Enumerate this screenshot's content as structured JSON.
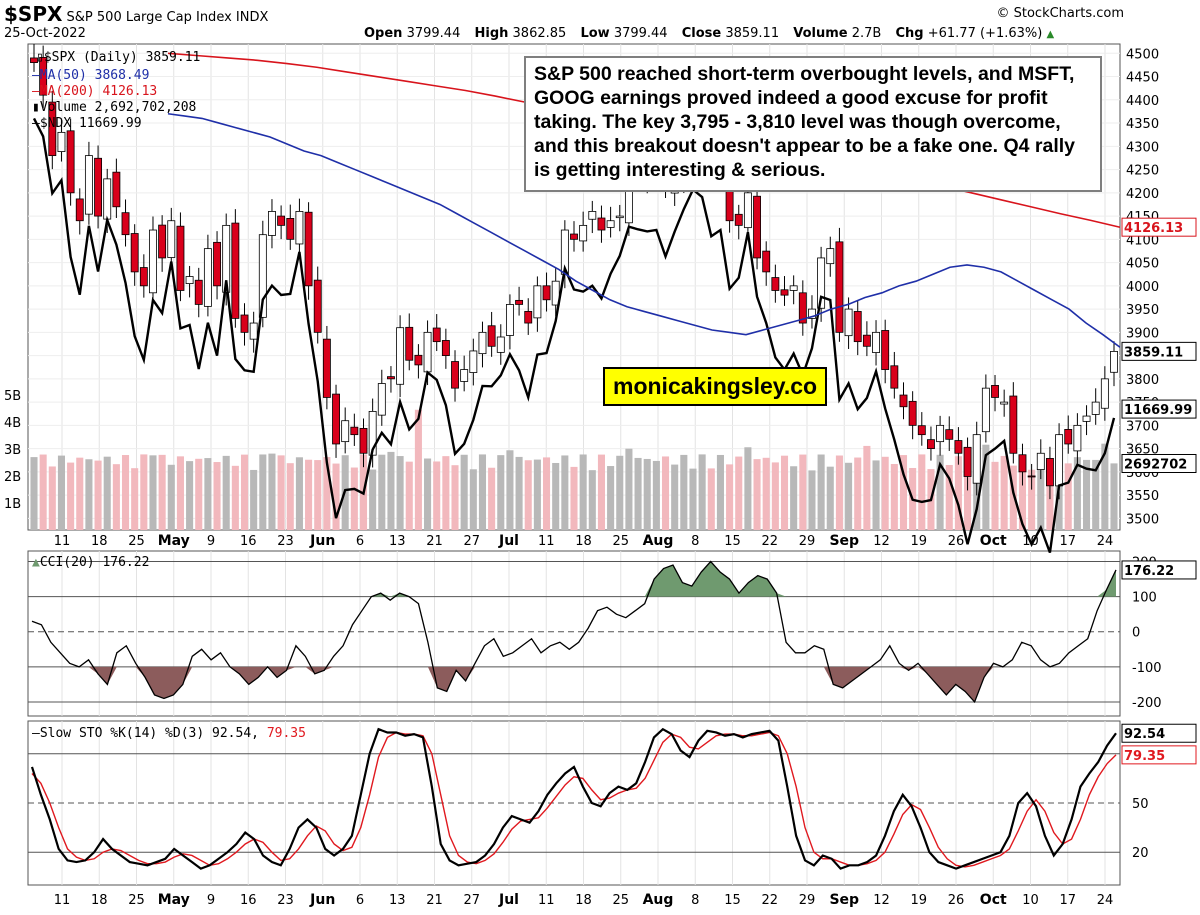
{
  "header": {
    "symbol": "$SPX",
    "name": "S&P 500 Large Cap Index",
    "exchange": "INDX",
    "date": "25-Oct-2022",
    "source": "© StockCharts.com",
    "ohlc": {
      "open_label": "Open",
      "open": "3799.44",
      "high_label": "High",
      "high": "3862.85",
      "low_label": "Low",
      "low": "3799.44",
      "close_label": "Close",
      "close": "3859.11",
      "volume_label": "Volume",
      "volume": "2.7B",
      "chg_label": "Chg",
      "chg": "+61.77 (+1.63%)"
    }
  },
  "legend": {
    "spx": "$SPX (Daily) 3859.11",
    "ma50": "MA(50) 3868.49",
    "ma200": "MA(200) 4126.13",
    "volume": "Volume 2,692,702,208",
    "ndx": "$NDX 11669.99"
  },
  "annotation": "S&P 500 reached short-term overbought levels, and MSFT, GOOG earnings proved indeed a good excuse for profit taking. The key 3,795 - 3,810 level was though overcome, and this breakout doesn't appear to be a fake one. Q4 rally is getting interesting & serious.",
  "watermark": "monicakingsley.co",
  "colors": {
    "up_candle": "#ffffff",
    "down_candle": "#d9001b",
    "ma50": "#1f2fa8",
    "ma200": "#d8141c",
    "volume_up": "#b8b8b8",
    "volume_down": "#f2b8bd",
    "cci_pos_fill": "#6f9a6f",
    "cci_neg_fill": "#8c5c5c",
    "sto_k": "#000000",
    "sto_d": "#e0191f"
  },
  "chart_data": [
    {
      "type": "candlestick",
      "title": "$SPX S&P 500 Large Cap Index INDX",
      "x_tick_labels": [
        "11",
        "18",
        "25",
        "May",
        "9",
        "16",
        "23",
        "Jun",
        "6",
        "13",
        "21",
        "27",
        "Jul",
        "11",
        "18",
        "25",
        "Aug",
        "8",
        "15",
        "22",
        "29",
        "Sep",
        "12",
        "19",
        "26",
        "Oct",
        "10",
        "17",
        "24"
      ],
      "y_ticks": [
        3500,
        3550,
        3600,
        3650,
        3700,
        3750,
        3800,
        3850,
        3900,
        3950,
        4000,
        4050,
        4100,
        4150,
        4200,
        4250,
        4300,
        4350,
        4400,
        4450,
        4500
      ],
      "ylim": [
        3475,
        4520
      ],
      "volume_ticks": [
        "1B",
        "2B",
        "3B",
        "4B",
        "5B"
      ],
      "last_value_labels": {
        "ma200": "4126.13",
        "close": "3859.11",
        "ndx": "11669.99",
        "volume": "2692702"
      },
      "series": [
        {
          "name": "$SPX (Daily)",
          "close": [
            4480,
            4410,
            4280,
            4330,
            4200,
            4140,
            4280,
            4150,
            4230,
            4170,
            4110,
            4030,
            4000,
            4120,
            4060,
            4140,
            3990,
            4020,
            3960,
            4080,
            4000,
            4130,
            3930,
            3900,
            3920,
            4110,
            4160,
            4130,
            4100,
            4160,
            4000,
            3900,
            3760,
            3660,
            3710,
            3680,
            3640,
            3730,
            3790,
            3800,
            3910,
            3840,
            3830,
            3900,
            3880,
            3850,
            3780,
            3820,
            3860,
            3900,
            3870,
            3890,
            3960,
            3960,
            3920,
            4000,
            3970,
            4010,
            4120,
            4100,
            4130,
            4160,
            4120,
            4140,
            4150,
            4210,
            4230,
            4260,
            4280,
            4210,
            4230,
            4250,
            4290,
            4300,
            4250,
            4280,
            4140,
            4130,
            4200,
            4060,
            4030,
            3990,
            3980,
            4000,
            3920,
            3950,
            4060,
            4080,
            3900,
            3950,
            3880,
            3870,
            3900,
            3820,
            3780,
            3740,
            3700,
            3680,
            3650,
            3700,
            3670,
            3640,
            3590,
            3680,
            3780,
            3760,
            3750,
            3640,
            3600,
            3590,
            3640,
            3570,
            3680,
            3660,
            3700,
            3720,
            3750,
            3800,
            3859
          ],
          "xlim_days": 119
        }
      ],
      "ma50": [
        4370,
        4365,
        4360,
        4350,
        4340,
        4330,
        4320,
        4305,
        4290,
        4280,
        4265,
        4250,
        4235,
        4220,
        4205,
        4190,
        4175,
        4155,
        4135,
        4115,
        4095,
        4075,
        4055,
        4035,
        4010,
        3990,
        3970,
        3955,
        3945,
        3935,
        3925,
        3915,
        3905,
        3900,
        3895,
        3905,
        3915,
        3925,
        3935,
        3950,
        3960,
        3975,
        3985,
        4000,
        4010,
        4025,
        4040,
        4045,
        4040,
        4030,
        4010,
        3990,
        3970,
        3950,
        3920,
        3895,
        3868
      ],
      "ma200": [
        4500,
        4495,
        4490,
        4485,
        4478,
        4470,
        4460,
        4450,
        4440,
        4430,
        4420,
        4408,
        4395,
        4383,
        4370,
        4358,
        4345,
        4333,
        4320,
        4308,
        4295,
        4283,
        4270,
        4258,
        4245,
        4230,
        4215,
        4200,
        4185,
        4170,
        4155,
        4141,
        4126
      ]
    },
    {
      "type": "line",
      "title": "CCI(20) 176.22",
      "y_ticks": [
        -200,
        -100,
        0,
        100,
        200
      ],
      "ylim": [
        -240,
        230
      ],
      "last_value_label": "176.22",
      "values": [
        30,
        20,
        -30,
        -60,
        -90,
        -100,
        -80,
        -120,
        -150,
        -60,
        -40,
        -90,
        -130,
        -180,
        -190,
        -180,
        -150,
        -70,
        -50,
        -80,
        -60,
        -100,
        -120,
        -150,
        -130,
        -100,
        -130,
        -110,
        -40,
        -70,
        -120,
        -110,
        -70,
        -40,
        20,
        60,
        100,
        110,
        90,
        110,
        100,
        80,
        -30,
        -160,
        -170,
        -110,
        -140,
        -90,
        -40,
        -20,
        -70,
        -60,
        -40,
        -20,
        -60,
        -40,
        -30,
        -50,
        -30,
        10,
        60,
        70,
        50,
        40,
        60,
        80,
        150,
        180,
        190,
        140,
        130,
        170,
        200,
        170,
        150,
        110,
        140,
        160,
        150,
        110,
        -30,
        -60,
        -60,
        -40,
        -50,
        -150,
        -160,
        -140,
        -120,
        -100,
        -80,
        -40,
        -90,
        -110,
        -90,
        -120,
        -150,
        -180,
        -150,
        -170,
        -200,
        -130,
        -90,
        -100,
        -80,
        -30,
        -40,
        -80,
        -100,
        -90,
        -60,
        -40,
        -20,
        60,
        120,
        176
      ]
    },
    {
      "type": "line",
      "title": "Slow STO %K(14) %D(3) 92.54, 79.35",
      "y_ticks": [
        20,
        50,
        80
      ],
      "ylim": [
        0,
        100
      ],
      "last_value_labels": {
        "k": "92.54",
        "d": "79.35"
      },
      "series": [
        {
          "name": "%K(14)",
          "values": [
            72,
            55,
            40,
            22,
            15,
            14,
            15,
            20,
            28,
            22,
            18,
            14,
            13,
            12,
            14,
            16,
            22,
            18,
            14,
            10,
            12,
            16,
            20,
            25,
            32,
            28,
            18,
            14,
            12,
            22,
            35,
            40,
            35,
            22,
            18,
            22,
            30,
            55,
            80,
            95,
            93,
            93,
            91,
            92,
            90,
            60,
            25,
            15,
            12,
            13,
            14,
            18,
            25,
            35,
            42,
            40,
            38,
            45,
            55,
            62,
            68,
            72,
            60,
            50,
            48,
            56,
            60,
            58,
            62,
            75,
            90,
            95,
            92,
            82,
            78,
            88,
            94,
            93,
            91,
            92,
            90,
            92,
            93,
            94,
            88,
            60,
            30,
            15,
            12,
            18,
            16,
            10,
            12,
            12,
            14,
            18,
            30,
            45,
            55,
            48,
            35,
            20,
            14,
            12,
            10,
            12,
            14,
            16,
            18,
            20,
            30,
            50,
            56,
            48,
            30,
            18,
            25,
            40,
            60,
            68,
            75,
            85,
            92.54
          ]
        },
        {
          "name": "%D(3)",
          "values": [
            68,
            62,
            50,
            35,
            22,
            17,
            15,
            16,
            20,
            22,
            21,
            18,
            15,
            13,
            13,
            14,
            17,
            19,
            18,
            15,
            12,
            13,
            16,
            20,
            25,
            28,
            26,
            20,
            15,
            16,
            22,
            30,
            36,
            33,
            25,
            21,
            23,
            35,
            55,
            78,
            90,
            93,
            92,
            92,
            91,
            80,
            55,
            30,
            18,
            14,
            13,
            15,
            19,
            26,
            34,
            39,
            40,
            41,
            47,
            54,
            61,
            66,
            65,
            58,
            52,
            53,
            56,
            58,
            59,
            65,
            76,
            87,
            92,
            90,
            84,
            83,
            87,
            91,
            92,
            92,
            91,
            91,
            92,
            93,
            91,
            80,
            60,
            35,
            20,
            16,
            16,
            14,
            12,
            12,
            13,
            15,
            20,
            31,
            43,
            49,
            46,
            35,
            23,
            16,
            12,
            11,
            12,
            14,
            16,
            18,
            22,
            33,
            45,
            52,
            45,
            32,
            25,
            28,
            40,
            55,
            66,
            74,
            79.35
          ]
        }
      ]
    }
  ],
  "x_axis_labels": [
    "11",
    "18",
    "25",
    "May",
    "9",
    "16",
    "23",
    "Jun",
    "6",
    "13",
    "21",
    "27",
    "Jul",
    "11",
    "18",
    "25",
    "Aug",
    "8",
    "15",
    "22",
    "29",
    "Sep",
    "12",
    "19",
    "26",
    "Oct",
    "10",
    "17",
    "24"
  ]
}
